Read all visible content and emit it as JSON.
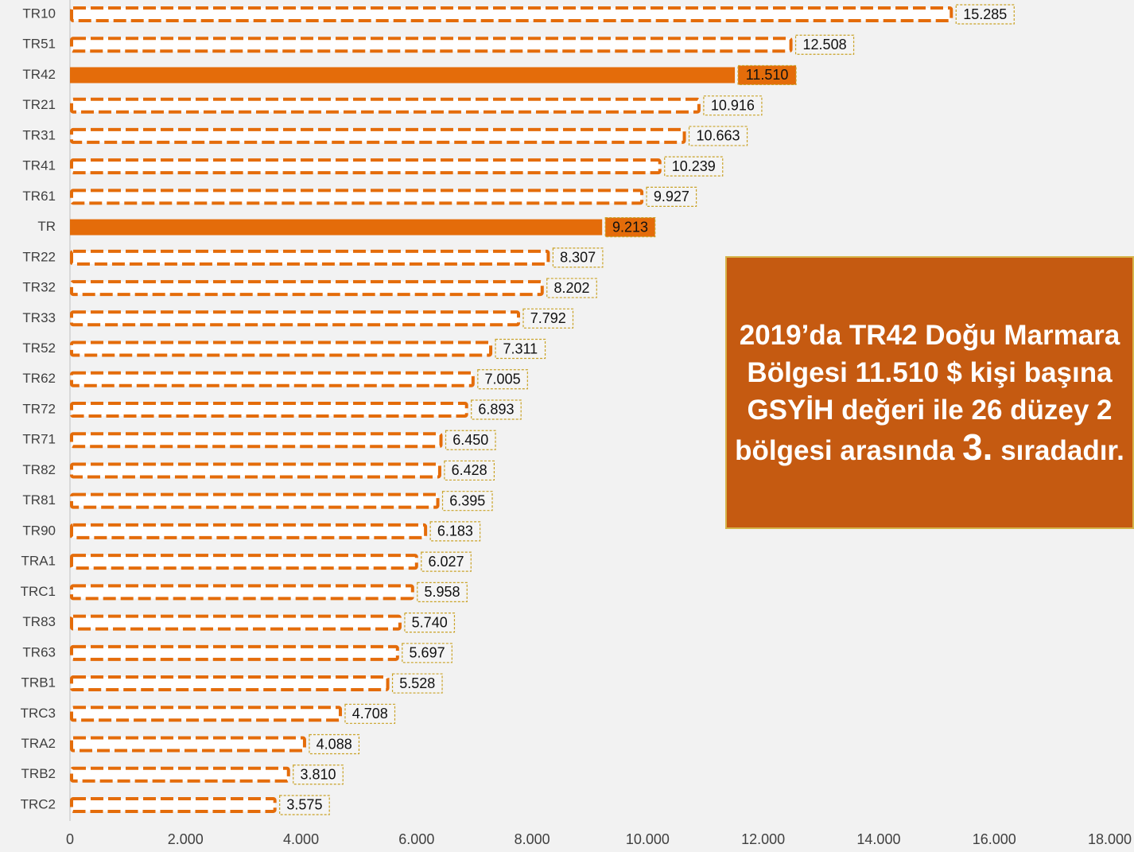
{
  "chart_data": {
    "type": "bar",
    "orientation": "horizontal",
    "categories": [
      "TR10",
      "TR51",
      "TR42",
      "TR21",
      "TR31",
      "TR41",
      "TR61",
      "TR",
      "TR22",
      "TR32",
      "TR33",
      "TR52",
      "TR62",
      "TR72",
      "TR71",
      "TR82",
      "TR81",
      "TR90",
      "TRA1",
      "TRC1",
      "TR83",
      "TR63",
      "TRB1",
      "TRC3",
      "TRA2",
      "TRB2",
      "TRC2"
    ],
    "values": [
      15285,
      12508,
      11510,
      10916,
      10663,
      10239,
      9927,
      9213,
      8307,
      8202,
      7792,
      7311,
      7005,
      6893,
      6450,
      6428,
      6395,
      6183,
      6027,
      5958,
      5740,
      5697,
      5528,
      4708,
      4088,
      3810,
      3575
    ],
    "value_labels": [
      "15.285",
      "12.508",
      "11.510",
      "10.916",
      "10.663",
      "10.239",
      "9.927",
      "9.213",
      "8.307",
      "8.202",
      "7.792",
      "7.311",
      "7.005",
      "6.893",
      "6.450",
      "6.428",
      "6.395",
      "6.183",
      "6.027",
      "5.958",
      "5.740",
      "5.697",
      "5.528",
      "4.708",
      "4.088",
      "3.810",
      "3.575"
    ],
    "color": "#e46c0a",
    "highlighted": [
      2,
      7
    ],
    "xlim": [
      0,
      18000
    ],
    "xticks": [
      0,
      {
        "value": 2000,
        "label": "2.000"
      },
      {
        "value": 4000,
        "label": "4.000"
      },
      {
        "value": 6000,
        "label": "6.000"
      },
      {
        "value": 8000,
        "label": "8.000"
      },
      {
        "value": 10000,
        "label": "10.000"
      },
      {
        "value": 12000,
        "label": "12.000"
      },
      {
        "value": 14000,
        "label": "14.000"
      },
      {
        "value": 16000,
        "label": "16.000"
      },
      {
        "value": 18000,
        "label": "18.000"
      }
    ],
    "grid": false,
    "annotation": {
      "text_before": "2019’da TR42 Doğu Marmara Bölgesi 11.510 $ kişi başına GSYİH değeri ile 26 düzey 2 bölgesi arasında",
      "emphasis": "3.",
      "text_after": "sıradadır."
    }
  }
}
